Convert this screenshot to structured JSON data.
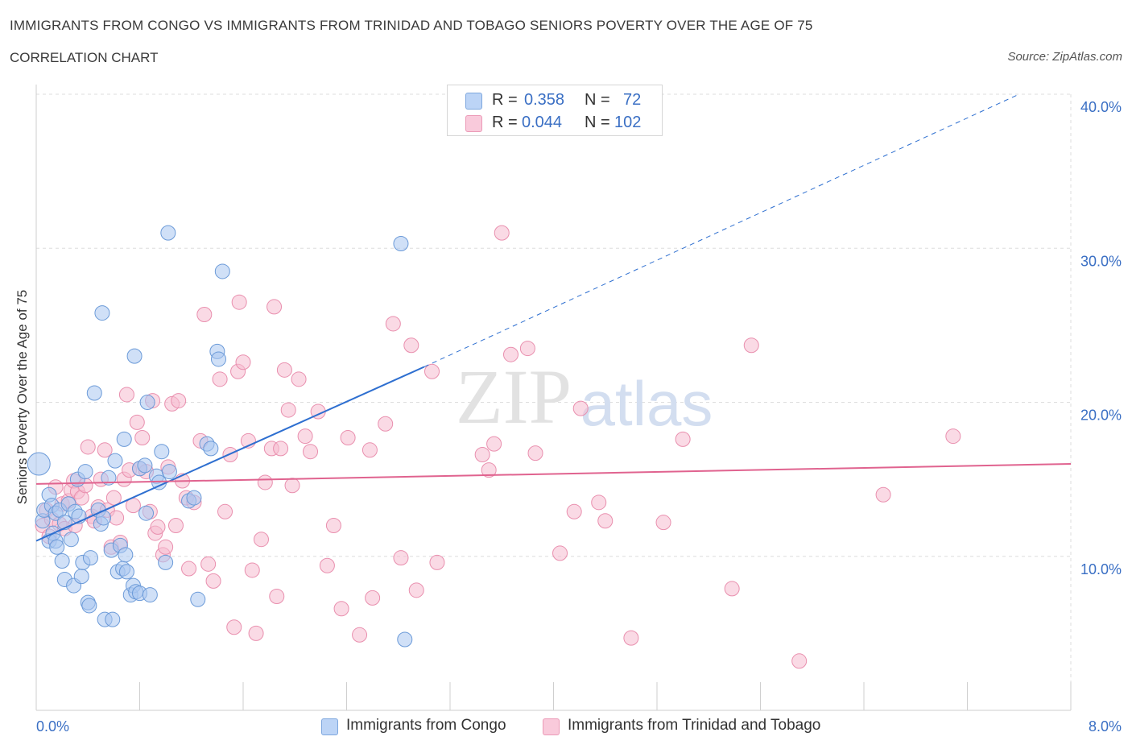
{
  "header": {
    "title": "IMMIGRANTS FROM CONGO VS IMMIGRANTS FROM TRINIDAD AND TOBAGO SENIORS POVERTY OVER THE AGE OF 75",
    "subtitle": "CORRELATION CHART",
    "source": "Source: ZipAtlas.com"
  },
  "legend": {
    "r_label": "R =",
    "n_label": "N =",
    "rows": [
      {
        "r": "0.358",
        "n": "72"
      },
      {
        "r": "0.044",
        "n": "102"
      }
    ]
  },
  "watermark": {
    "zip": "ZIP",
    "atlas": "atlas"
  },
  "colors": {
    "congo_fill": "#a9c6f0",
    "congo_stroke": "#6b9ad8",
    "congo_line": "#2e6fd0",
    "tt_fill": "#f6bcd0",
    "tt_stroke": "#e98fae",
    "tt_line": "#e0638f",
    "tick_label": "#3a6fc4",
    "grid": "#dddddd"
  },
  "chart_data": {
    "type": "scatter",
    "title": "IMMIGRANTS FROM CONGO VS IMMIGRANTS FROM TRINIDAD AND TOBAGO SENIORS POVERTY OVER THE AGE OF 75",
    "ylabel": "Seniors Poverty Over the Age of 75",
    "xlim": [
      0,
      8
    ],
    "ylim": [
      0,
      40
    ],
    "x_tick_labels": [
      "0.0%",
      "8.0%"
    ],
    "y_ticks": [
      10,
      20,
      30,
      40
    ],
    "y_tick_labels": [
      "10.0%",
      "20.0%",
      "30.0%",
      "40.0%"
    ],
    "grid": true,
    "legend_placement": "top-center",
    "series": [
      {
        "name": "Immigrants from Congo",
        "trend": {
          "x0": 0.0,
          "y0": 11.0,
          "x1": 3.0,
          "y1": 22.3,
          "dash_to_x": 7.6,
          "dash_to_y": 40.0
        },
        "points": [
          [
            0.02,
            16.0
          ],
          [
            0.05,
            12.3
          ],
          [
            0.06,
            13.0
          ],
          [
            0.1,
            14.0
          ],
          [
            0.1,
            11.0
          ],
          [
            0.12,
            13.3
          ],
          [
            0.13,
            11.5
          ],
          [
            0.15,
            11.0
          ],
          [
            0.15,
            12.8
          ],
          [
            0.16,
            10.6
          ],
          [
            0.18,
            13.0
          ],
          [
            0.2,
            9.7
          ],
          [
            0.22,
            12.2
          ],
          [
            0.22,
            8.5
          ],
          [
            0.25,
            13.4
          ],
          [
            0.27,
            11.1
          ],
          [
            0.29,
            8.1
          ],
          [
            0.3,
            12.9
          ],
          [
            0.32,
            15.0
          ],
          [
            0.33,
            12.6
          ],
          [
            0.35,
            8.7
          ],
          [
            0.36,
            9.6
          ],
          [
            0.38,
            15.5
          ],
          [
            0.4,
            7.0
          ],
          [
            0.41,
            6.8
          ],
          [
            0.42,
            9.9
          ],
          [
            0.45,
            20.6
          ],
          [
            0.48,
            13.0
          ],
          [
            0.5,
            12.1
          ],
          [
            0.51,
            25.8
          ],
          [
            0.52,
            12.5
          ],
          [
            0.53,
            5.9
          ],
          [
            0.56,
            15.1
          ],
          [
            0.58,
            10.4
          ],
          [
            0.59,
            5.9
          ],
          [
            0.61,
            16.2
          ],
          [
            0.63,
            9.0
          ],
          [
            0.65,
            10.7
          ],
          [
            0.67,
            9.2
          ],
          [
            0.68,
            17.6
          ],
          [
            0.69,
            10.1
          ],
          [
            0.7,
            9.0
          ],
          [
            0.73,
            7.5
          ],
          [
            0.75,
            8.1
          ],
          [
            0.76,
            23.0
          ],
          [
            0.77,
            7.7
          ],
          [
            0.8,
            15.7
          ],
          [
            0.8,
            7.6
          ],
          [
            0.84,
            15.9
          ],
          [
            0.85,
            12.8
          ],
          [
            0.86,
            20.0
          ],
          [
            0.88,
            7.5
          ],
          [
            0.93,
            15.2
          ],
          [
            0.95,
            14.8
          ],
          [
            0.97,
            16.8
          ],
          [
            1.0,
            9.6
          ],
          [
            1.02,
            31.0
          ],
          [
            1.03,
            15.5
          ],
          [
            1.18,
            13.6
          ],
          [
            1.22,
            13.8
          ],
          [
            1.25,
            7.2
          ],
          [
            1.32,
            17.3
          ],
          [
            1.35,
            17.0
          ],
          [
            1.4,
            23.3
          ],
          [
            1.41,
            22.8
          ],
          [
            1.44,
            28.5
          ],
          [
            2.82,
            30.3
          ],
          [
            2.85,
            4.6
          ]
        ]
      },
      {
        "name": "Immigrants from Trinidad and Tobago",
        "trend": {
          "x0": 0.0,
          "y0": 14.7,
          "x1": 8.0,
          "y1": 16.0
        },
        "points": [
          [
            0.05,
            12.0
          ],
          [
            0.08,
            13.0
          ],
          [
            0.1,
            11.3
          ],
          [
            0.12,
            12.4
          ],
          [
            0.15,
            14.5
          ],
          [
            0.18,
            12.1
          ],
          [
            0.2,
            13.4
          ],
          [
            0.22,
            11.8
          ],
          [
            0.25,
            13.6
          ],
          [
            0.27,
            14.3
          ],
          [
            0.29,
            14.9
          ],
          [
            0.3,
            12.0
          ],
          [
            0.32,
            14.2
          ],
          [
            0.35,
            13.8
          ],
          [
            0.38,
            14.6
          ],
          [
            0.4,
            17.1
          ],
          [
            0.43,
            12.6
          ],
          [
            0.45,
            12.3
          ],
          [
            0.48,
            13.2
          ],
          [
            0.5,
            15.0
          ],
          [
            0.53,
            16.9
          ],
          [
            0.55,
            13.0
          ],
          [
            0.58,
            10.6
          ],
          [
            0.6,
            13.8
          ],
          [
            0.62,
            12.5
          ],
          [
            0.65,
            10.9
          ],
          [
            0.68,
            15.0
          ],
          [
            0.7,
            20.5
          ],
          [
            0.72,
            15.6
          ],
          [
            0.75,
            13.3
          ],
          [
            0.78,
            18.7
          ],
          [
            0.8,
            15.7
          ],
          [
            0.82,
            17.7
          ],
          [
            0.85,
            15.5
          ],
          [
            0.88,
            12.9
          ],
          [
            0.9,
            20.1
          ],
          [
            0.92,
            11.5
          ],
          [
            0.94,
            11.9
          ],
          [
            0.98,
            10.1
          ],
          [
            1.0,
            10.6
          ],
          [
            1.02,
            15.8
          ],
          [
            1.05,
            19.9
          ],
          [
            1.08,
            12.0
          ],
          [
            1.1,
            20.1
          ],
          [
            1.13,
            14.9
          ],
          [
            1.16,
            13.8
          ],
          [
            1.18,
            9.2
          ],
          [
            1.22,
            13.5
          ],
          [
            1.27,
            17.5
          ],
          [
            1.3,
            25.7
          ],
          [
            1.33,
            9.5
          ],
          [
            1.37,
            8.4
          ],
          [
            1.42,
            21.5
          ],
          [
            1.46,
            12.9
          ],
          [
            1.5,
            16.6
          ],
          [
            1.53,
            5.4
          ],
          [
            1.56,
            22.0
          ],
          [
            1.57,
            26.5
          ],
          [
            1.6,
            22.6
          ],
          [
            1.64,
            17.5
          ],
          [
            1.67,
            9.1
          ],
          [
            1.7,
            5.0
          ],
          [
            1.74,
            11.1
          ],
          [
            1.77,
            14.8
          ],
          [
            1.82,
            17.0
          ],
          [
            1.84,
            26.2
          ],
          [
            1.86,
            7.4
          ],
          [
            1.89,
            17.0
          ],
          [
            1.92,
            22.1
          ],
          [
            1.95,
            19.5
          ],
          [
            1.98,
            14.6
          ],
          [
            2.03,
            21.5
          ],
          [
            2.08,
            17.8
          ],
          [
            2.12,
            16.8
          ],
          [
            2.18,
            19.4
          ],
          [
            2.25,
            9.4
          ],
          [
            2.3,
            12.0
          ],
          [
            2.36,
            6.6
          ],
          [
            2.41,
            17.7
          ],
          [
            2.5,
            4.9
          ],
          [
            2.58,
            16.9
          ],
          [
            2.6,
            7.3
          ],
          [
            2.7,
            18.6
          ],
          [
            2.76,
            25.1
          ],
          [
            2.82,
            9.9
          ],
          [
            2.9,
            23.7
          ],
          [
            2.94,
            7.8
          ],
          [
            3.06,
            22.0
          ],
          [
            3.1,
            9.6
          ],
          [
            3.45,
            16.6
          ],
          [
            3.5,
            15.6
          ],
          [
            3.54,
            17.3
          ],
          [
            3.6,
            31.0
          ],
          [
            3.67,
            23.1
          ],
          [
            3.8,
            23.5
          ],
          [
            3.86,
            16.7
          ],
          [
            4.05,
            10.2
          ],
          [
            4.16,
            12.9
          ],
          [
            4.21,
            19.6
          ],
          [
            4.35,
            13.5
          ],
          [
            4.4,
            12.3
          ],
          [
            4.6,
            4.7
          ],
          [
            4.85,
            12.2
          ],
          [
            5.0,
            17.6
          ],
          [
            5.38,
            7.9
          ],
          [
            5.53,
            23.7
          ],
          [
            5.9,
            3.2
          ],
          [
            6.55,
            14.0
          ],
          [
            7.09,
            17.8
          ]
        ]
      }
    ]
  },
  "bottom_legend": {
    "items": [
      "Immigrants from Congo",
      "Immigrants from Trinidad and Tobago"
    ]
  }
}
